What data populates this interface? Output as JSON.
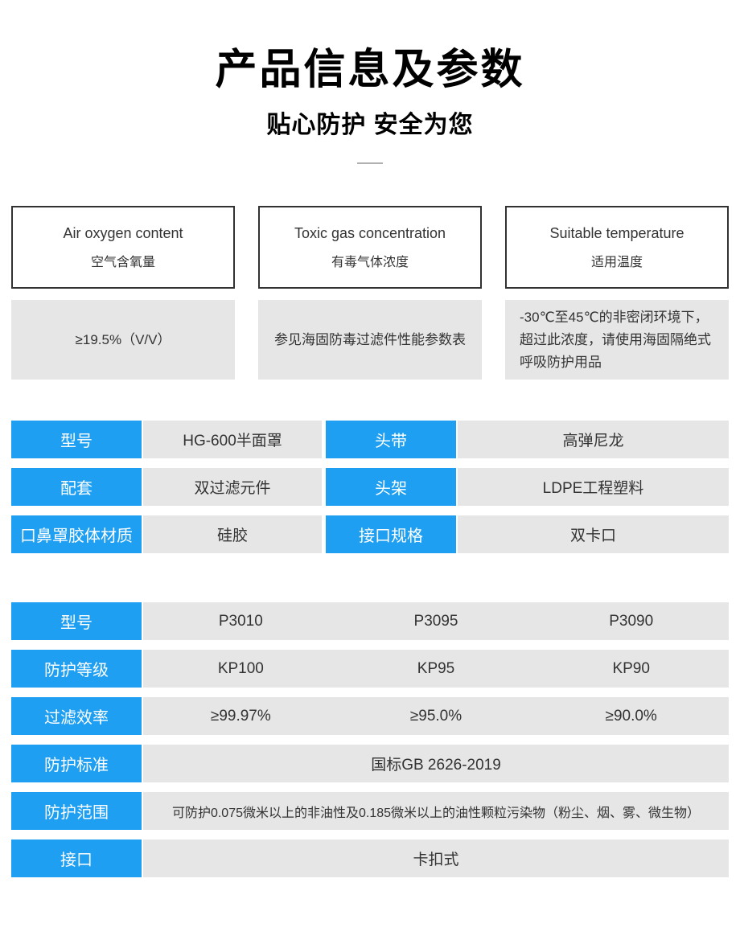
{
  "page": {
    "title": "产品信息及参数",
    "subtitle": "贴心防护 安全为您"
  },
  "colors": {
    "accent_blue": "#1e9ff2",
    "cell_gray": "#e6e6e6",
    "border_dark": "#323232"
  },
  "spec_cards": [
    {
      "title_en": "Air oxygen content",
      "title_zh": "空气含氧量",
      "value": "≥19.5%（V/V）"
    },
    {
      "title_en": "Toxic gas concentration",
      "title_zh": "有毒气体浓度",
      "value": "参见海固防毒过滤件性能参数表"
    },
    {
      "title_en": "Suitable temperature",
      "title_zh": "适用温度",
      "value": "-30℃至45℃的非密闭环境下，\n超过此浓度，请使用海固隔绝式\n呼吸防护用品"
    }
  ],
  "mask_spec_table": {
    "rows": [
      {
        "label1": "型号",
        "value1": "HG-600半面罩",
        "label2": "头带",
        "value2": "高弹尼龙"
      },
      {
        "label1": "配套",
        "value1": "双过滤元件",
        "label2": "头架",
        "value2": "LDPE工程塑料"
      },
      {
        "label1": "口鼻罩胶体材质",
        "value1": "硅胶",
        "label2": "接口规格",
        "value2": "双卡口"
      }
    ]
  },
  "filter_spec_table": {
    "rows3": [
      {
        "label": "型号",
        "values": [
          "P3010",
          "P3095",
          "P3090"
        ]
      },
      {
        "label": "防护等级",
        "values": [
          "KP100",
          "KP95",
          "KP90"
        ]
      },
      {
        "label": "过滤效率",
        "values": [
          "≥99.97%",
          "≥95.0%",
          "≥90.0%"
        ]
      }
    ],
    "rows1": [
      {
        "label": "防护标准",
        "value": "国标GB 2626-2019"
      },
      {
        "label": "防护范围",
        "value": "可防护0.075微米以上的非油性及0.185微米以上的油性颗粒污染物（粉尘、烟、雾、微生物）"
      },
      {
        "label": "接口",
        "value": "卡扣式"
      }
    ]
  }
}
